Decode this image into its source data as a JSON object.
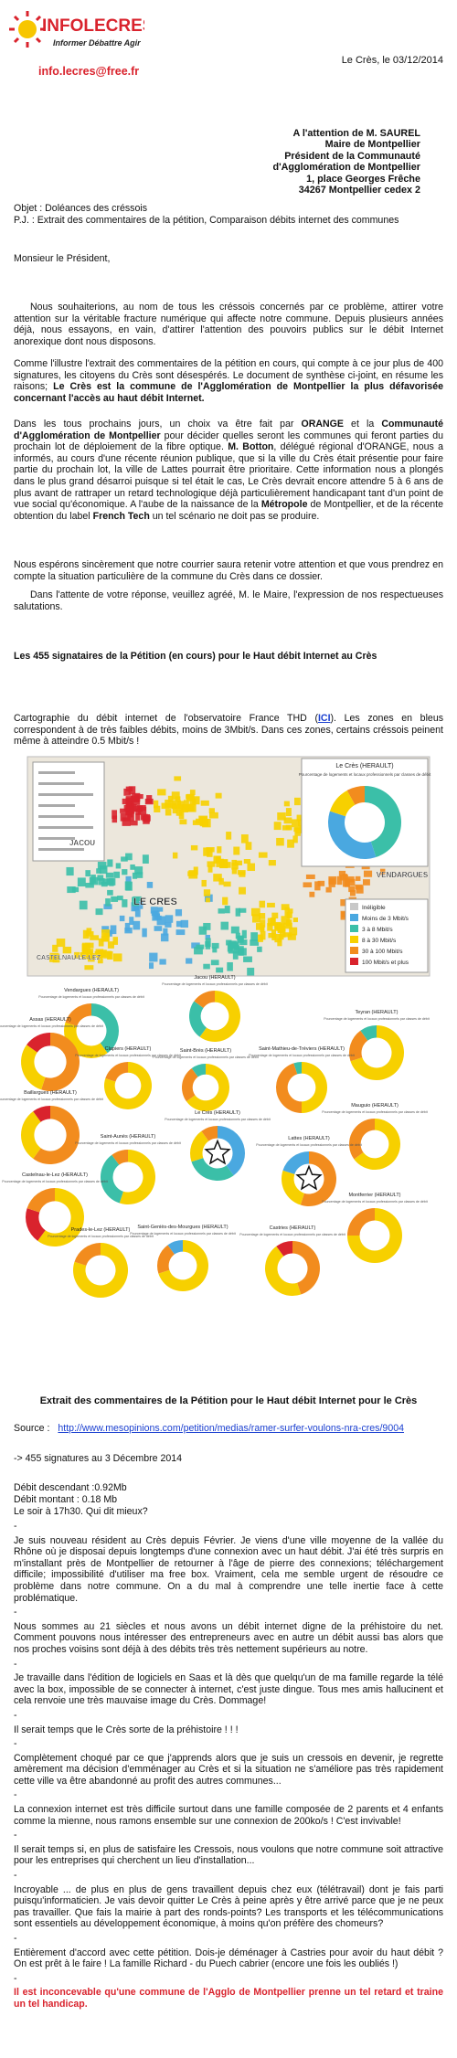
{
  "header": {
    "logo_name": "INFOLECRES",
    "logo_tagline": "Informer Débattre Agir",
    "email": "info.lecres@free.fr",
    "date": "Le Crès, le 03/12/2014"
  },
  "recipient": [
    "A l'attention de M. SAUREL",
    "Maire de Montpellier",
    "Président de la Communauté",
    "d'Agglomération de Montpellier",
    "1, place Georges Frêche",
    "34267 Montpellier cedex 2"
  ],
  "object": "Objet : Doléances des créssois",
  "attachments": "P.J. : Extrait des commentaires de la pétition, Comparaison débits internet des communes",
  "salutation": "Monsieur le Président,",
  "letter_paragraphs": [
    {
      "indent": true,
      "runs": [
        {
          "text": "Nous souhaiterions, au nom de tous les créssois concernés par ce problème, attirer votre attention sur la véritable fracture numérique qui affecte notre commune. Depuis plusieurs années déjà, nous essayons, en vain, d'attirer l'attention des pouvoirs publics sur le débit Internet anorexique dont nous disposons."
        }
      ]
    },
    {
      "indent": false,
      "runs": [
        {
          "text": "Comme l'illustre l'extrait des commentaires de la pétition en cours, qui compte à ce jour plus de 400 signatures, les citoyens du Crès sont désespérés. Le document de synthèse ci-joint, en résume les raisons; "
        },
        {
          "text": "Le Crès est la commune de l'Agglomération de Montpellier la plus défavorisée concernant l'accès au haut débit Internet.",
          "bold": true
        }
      ]
    },
    {
      "indent": false,
      "runs": [
        {
          "text": "Dans les tous prochains jours, un choix va être fait par "
        },
        {
          "text": "ORANGE",
          "bold": true
        },
        {
          "text": " et la "
        },
        {
          "text": "Communauté d'Agglomération de Montpellier",
          "bold": true
        },
        {
          "text": " pour décider quelles seront les communes qui feront parties du prochain lot de déploiement de la fibre optique. "
        },
        {
          "text": "M. Botton",
          "bold": true
        },
        {
          "text": ", délégué régional d'ORANGE, nous a informés, au cours d'une récente réunion publique, que si la ville du Crès était présentie pour faire partie du prochain lot, la ville de Lattes pourrait être prioritaire. Cette information nous a plongés dans le plus grand désarroi puisque si tel était le cas, Le Crès devrait encore attendre 5 à 6 ans de plus avant de rattraper un retard technologique déjà particulièrement handicapant tant d'un point de vue social qu'économique. A l'aube de la naissance de la "
        },
        {
          "text": "Métropole",
          "bold": true
        },
        {
          "text": " de Montpellier, et de la récente obtention du label "
        },
        {
          "text": "French Tech",
          "bold": true
        },
        {
          "text": " un tel scénario ne doit pas se produire."
        }
      ]
    },
    {
      "indent": false,
      "runs": [
        {
          "text": "Nous espérons sincèrement que notre courrier saura retenir votre attention et que vous prendrez en compte la situation particulière de la commune du Crès dans ce dossier."
        }
      ]
    },
    {
      "indent": true,
      "runs": [
        {
          "text": "Dans l'attente de votre réponse, veuillez agréé, M. le Maire, l'expression de nos respectueuses salutations."
        }
      ]
    }
  ],
  "petition_heading": "Les 455 signataires de la Pétition (en cours) pour le Haut débit Internet au Crès",
  "map_intro": {
    "runs": [
      {
        "text": "Cartographie du débit internet de l'observatoire France THD ("
      },
      {
        "text": "ICI",
        "bold": true,
        "link": true
      },
      {
        "text": "). Les zones en bleus correspondent à de très faibles débits, moins de 3Mbit/s. Dans ces zones, certains créssois peinent même à atteindre 0.5 Mbit/s !"
      }
    ]
  },
  "map": {
    "places": [
      "LE CRES",
      "JACOU",
      "VENDARGUES",
      "CASTELNAU-LE-LEZ"
    ],
    "inset_title": "Le Crès (HERAULT)",
    "legend": [
      {
        "label": "Inéligible",
        "color": "#c8c8c8"
      },
      {
        "label": "Moins de 3 Mbit/s",
        "color": "#4aa8e0"
      },
      {
        "label": "3 à 8 Mbit/s",
        "color": "#3bbfa8"
      },
      {
        "label": "8 à 30 Mbit/s",
        "color": "#f7d000"
      },
      {
        "label": "30 à 100 Mbit/s",
        "color": "#f28c1e"
      },
      {
        "label": "100 Mbit/s et plus",
        "color": "#d9232d"
      }
    ]
  },
  "donut_caption": "Pourcentage de logements et locaux professionnels par classes de débit",
  "donuts": [
    "Vendargues (HERAULT)",
    "Jacou (HERAULT)",
    "Assas (HERAULT)",
    "Teyran (HERAULT)",
    "Clapiers (HERAULT)",
    "Saint-Brès (HERAULT)",
    "Saint-Mathieu-de-Tréviers (HERAULT)",
    "Baillargues (HERAULT)",
    "Le Crès (HERAULT)",
    "Mauguio (HERAULT)",
    "Saint-Aunès (HERAULT)",
    "Lattes (HERAULT)",
    "Castelnau-le-Lez (HERAULT)",
    "Montferrier (HERAULT)",
    "Prades-le-Lez (HERAULT)",
    "Saint-Geniès-des-Mourgues (HERAULT)",
    "Castries (HERAULT)"
  ],
  "comments_heading": "Extrait des commentaires de la Pétition pour le Haut débit Internet pour le Crès",
  "source_label": "Source :",
  "source_url": "http://www.mesopinions.com/petition/medias/ramer-surfer-voulons-nra-cres/9004",
  "signatures": "-> 455 signatures au 3 Décembre 2014",
  "speed_report": [
    "Débit descendant :0.92Mb",
    "Débit montant : 0.18 Mb",
    "Le soir à 17h30. Qui dit mieux?"
  ],
  "separator": "-",
  "comments": [
    {
      "text": "Je suis nouveau résident au Crès depuis Février. Je viens d'une ville moyenne de la vallée du Rhône où je disposai depuis longtemps d'une connexion avec un haut débit. J'ai été très surpris en m'installant près de Montpellier de retourner à l'âge de pierre des connexions; téléchargement difficile; impossibilité d'utiliser ma free box. Vraiment, cela me semble urgent de résoudre ce problème dans notre commune. On a du mal à comprendre une telle inertie face à cette problématique.",
      "highlight": false
    },
    {
      "text": "Nous sommes au 21 siècles et nous avons un débit internet digne de la préhistoire du net. Comment pouvons nous intéresser des entrepreneurs avec en autre un débit aussi bas alors que nos proches voisins sont déjà à des débits très très nettement supérieurs au notre.",
      "highlight": false
    },
    {
      "text": "Je travaille dans l'édition de logiciels en Saas et là dès que quelqu'un de ma famille regarde la télé avec la box, impossible de se connecter à internet, c'est juste dingue. Tous mes amis hallucinent et cela renvoie une très mauvaise image du Crès. Dommage!",
      "highlight": false
    },
    {
      "text": "Il serait temps que le Crès sorte de la préhistoire ! ! !",
      "highlight": false
    },
    {
      "text": "Complètement choqué par ce que j'apprends alors que je suis un cressois en devenir, je regrette amèrement ma décision d'emménager au Crès et si la situation ne s'améliore pas très rapidement cette ville va être abandonné au profit des autres communes...",
      "highlight": false
    },
    {
      "text": "La connexion internet est très difficile surtout dans une famille composée de 2 parents et 4 enfants comme la mienne, nous ramons ensemble sur une connexion de 200ko/s ! C'est invivable!",
      "highlight": false
    },
    {
      "text": "Il serait temps si, en plus de satisfaire les Cressois, nous voulons que notre commune soit attractive pour les entreprises qui cherchent un lieu d'installation...",
      "highlight": false
    },
    {
      "text": "Incroyable ... de plus en plus de gens travaillent depuis chez eux (télétravail) dont je fais parti puisqu'informaticien. Je vais devoir quitter Le Crès à peine après y être arrivé parce que je ne peux pas travailler. Que fais la mairie à part des ronds-points? Les transports et les télécommunications sont essentiels au développement économique, à moins qu'on préfère des chomeurs?",
      "highlight": false
    },
    {
      "text": "Entièrement d'accord avec cette pétition. Dois-je déménager à Castries pour avoir du haut débit ? On est prêt à le faire ! La famille Richard - du Puech cabrier (encore une fois les oubliés !)",
      "highlight": false
    },
    {
      "text": "Il est inconcevable qu'une commune de l'Agglo de Montpellier prenne un tel retard et traine un tel handicap.",
      "highlight": true
    }
  ]
}
